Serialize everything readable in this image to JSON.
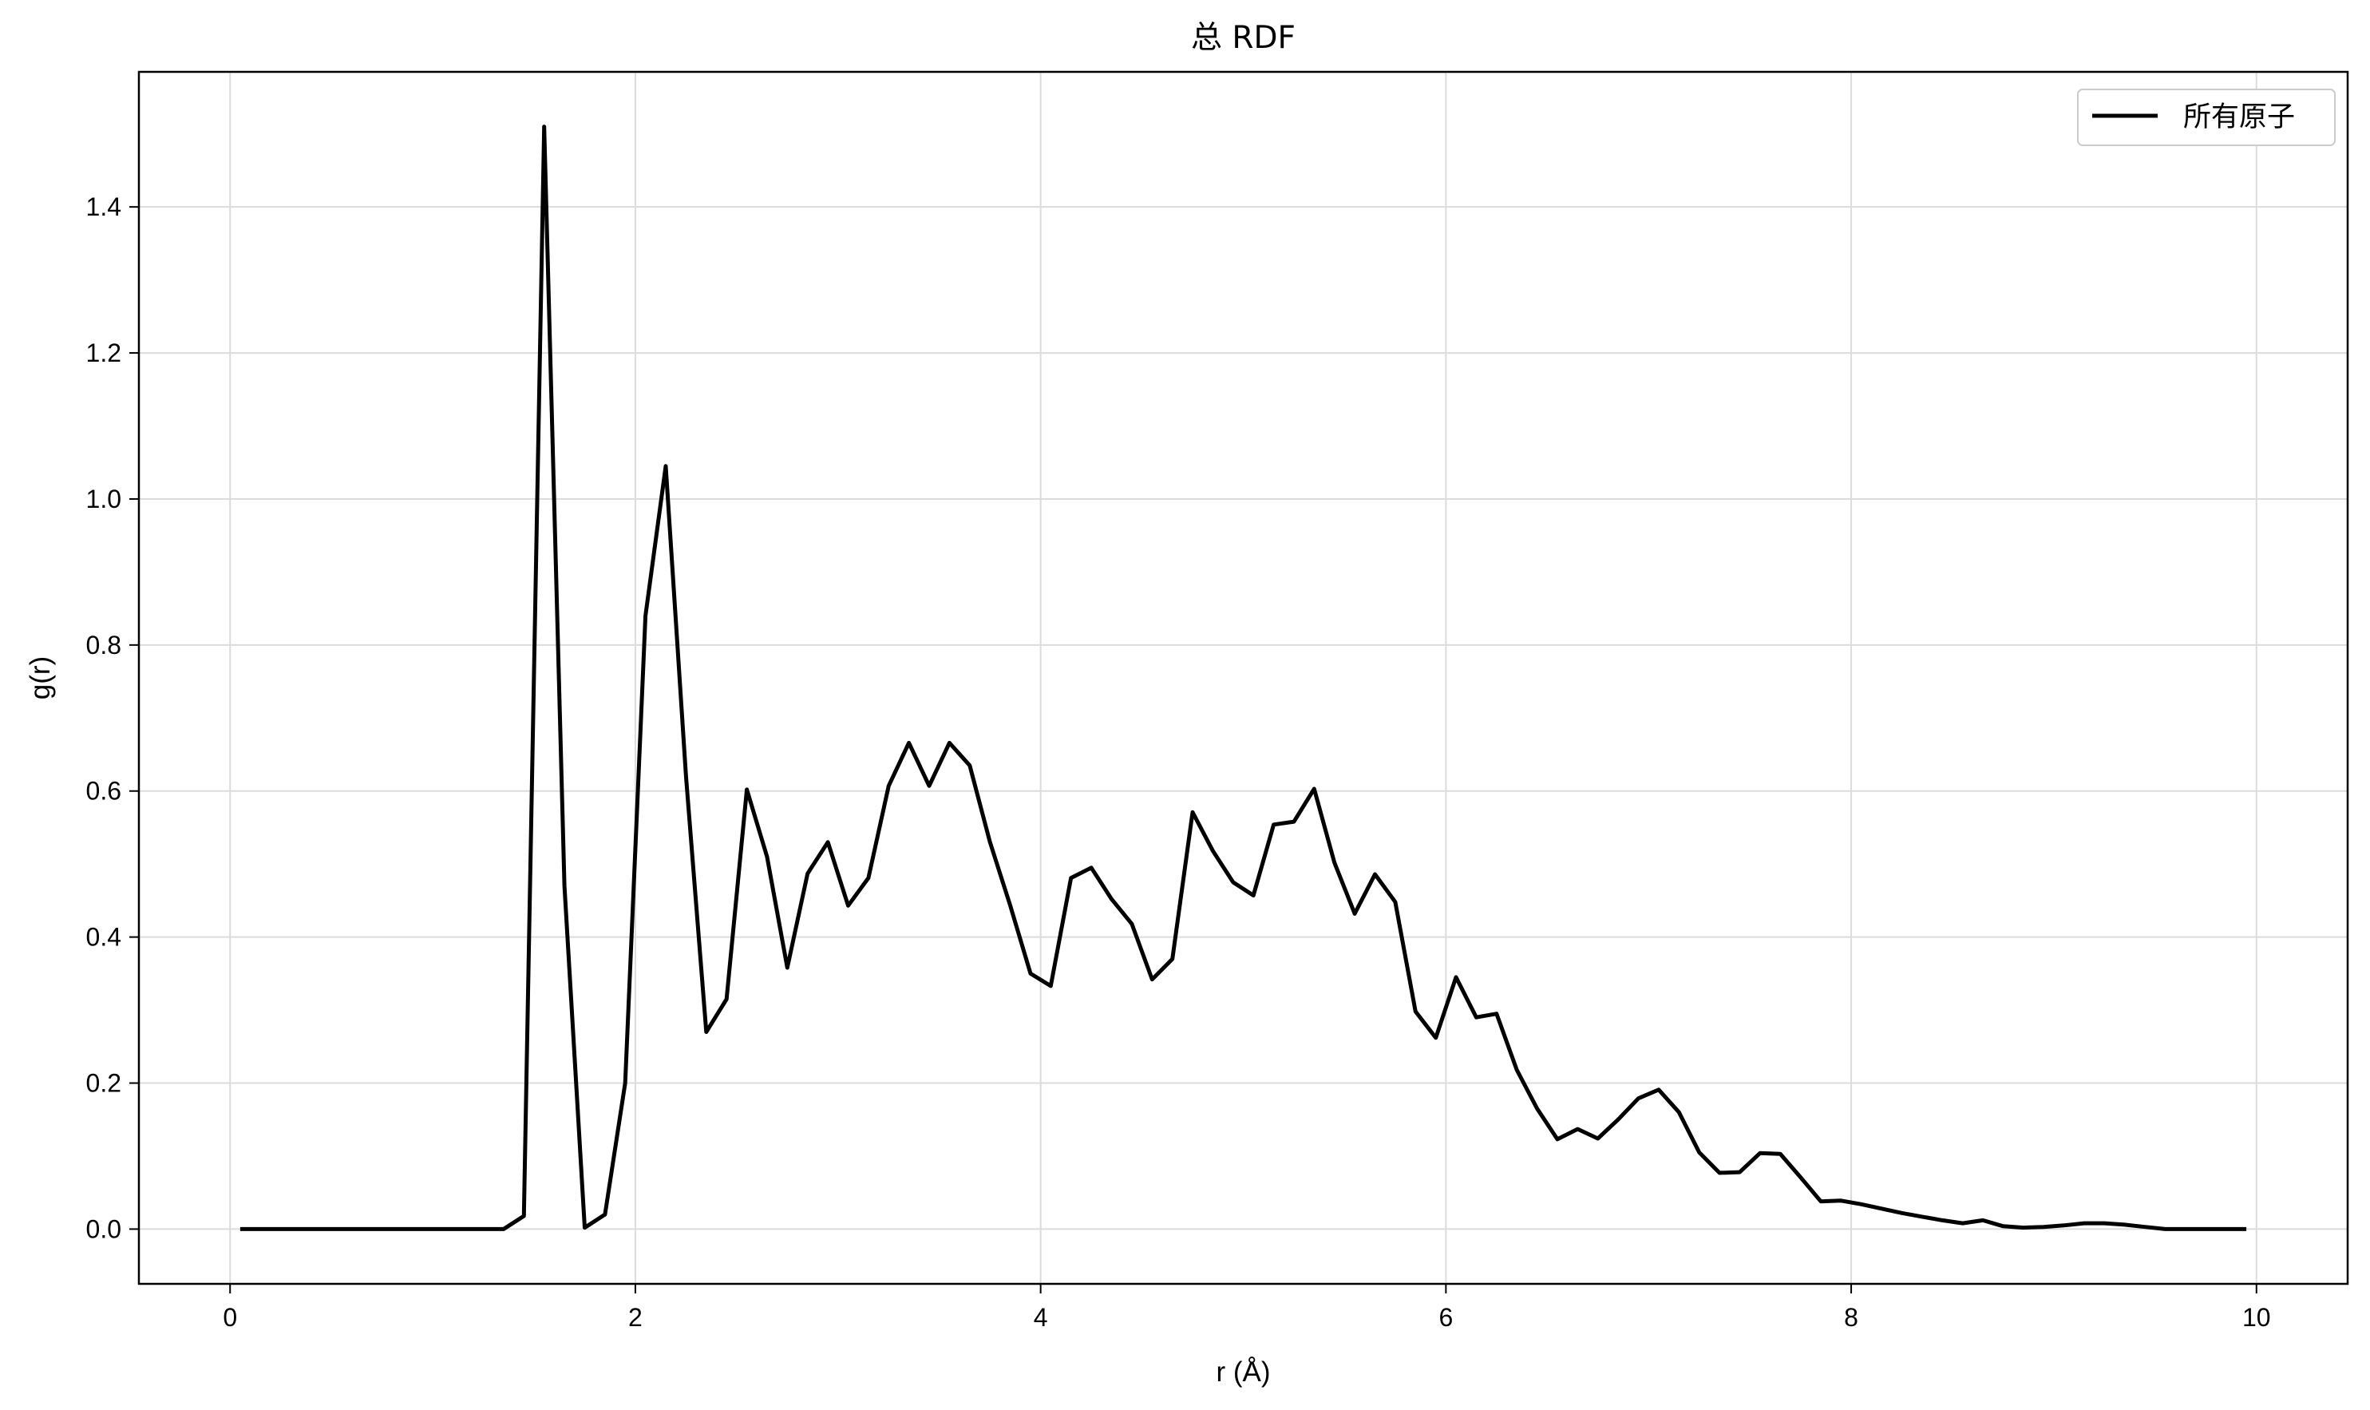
{
  "chart_data": {
    "type": "line",
    "title": "总 RDF",
    "xlabel": "r (Å)",
    "ylabel": "g(r)",
    "xlim": [
      -0.45,
      10.45
    ],
    "ylim": [
      -0.075,
      1.585
    ],
    "grid": true,
    "legend_position": "top-right",
    "x_ticks": [
      0,
      2,
      4,
      6,
      8,
      10
    ],
    "x_tick_labels": [
      "0",
      "2",
      "4",
      "6",
      "8",
      "10"
    ],
    "y_ticks": [
      0.0,
      0.2,
      0.4,
      0.6,
      0.8,
      1.0,
      1.2,
      1.4
    ],
    "y_tick_labels": [
      "0.0",
      "0.2",
      "0.4",
      "0.6",
      "0.8",
      "1.0",
      "1.2",
      "1.4"
    ],
    "series": [
      {
        "name": "所有原子",
        "color": "#000000",
        "x": [
          0.05,
          0.15,
          0.25,
          0.35,
          0.45,
          0.55,
          0.65,
          0.75,
          0.85,
          0.95,
          1.05,
          1.15,
          1.25,
          1.35,
          1.45,
          1.55,
          1.65,
          1.75,
          1.85,
          1.95,
          2.05,
          2.15,
          2.25,
          2.35,
          2.45,
          2.55,
          2.65,
          2.75,
          2.85,
          2.95,
          3.05,
          3.15,
          3.25,
          3.35,
          3.45,
          3.55,
          3.65,
          3.75,
          3.85,
          3.95,
          4.05,
          4.15,
          4.25,
          4.35,
          4.45,
          4.55,
          4.65,
          4.75,
          4.85,
          4.95,
          5.05,
          5.15,
          5.25,
          5.35,
          5.45,
          5.55,
          5.65,
          5.75,
          5.85,
          5.95,
          6.05,
          6.15,
          6.25,
          6.35,
          6.45,
          6.55,
          6.65,
          6.75,
          6.85,
          6.95,
          7.05,
          7.15,
          7.25,
          7.35,
          7.45,
          7.55,
          7.65,
          7.75,
          7.85,
          7.95,
          8.05,
          8.15,
          8.25,
          8.35,
          8.45,
          8.55,
          8.65,
          8.75,
          8.85,
          8.95,
          9.05,
          9.15,
          9.25,
          9.35,
          9.45,
          9.55,
          9.65,
          9.75,
          9.85,
          9.95
        ],
        "values": [
          0,
          0,
          0,
          0,
          0,
          0,
          0,
          0,
          0,
          0,
          0,
          0,
          0,
          0,
          0.018,
          1.51,
          0.47,
          0.002,
          0.02,
          0.2,
          0.84,
          1.045,
          0.62,
          0.27,
          0.315,
          0.602,
          0.51,
          0.358,
          0.487,
          0.53,
          0.443,
          0.481,
          0.607,
          0.666,
          0.607,
          0.666,
          0.635,
          0.53,
          0.443,
          0.35,
          0.333,
          0.481,
          0.495,
          0.452,
          0.418,
          0.342,
          0.37,
          0.571,
          0.518,
          0.475,
          0.457,
          0.554,
          0.558,
          0.603,
          0.502,
          0.432,
          0.486,
          0.448,
          0.298,
          0.262,
          0.345,
          0.29,
          0.295,
          0.218,
          0.165,
          0.123,
          0.137,
          0.124,
          0.15,
          0.179,
          0.191,
          0.16,
          0.105,
          0.077,
          0.078,
          0.104,
          0.103,
          0.071,
          0.038,
          0.039,
          0.034,
          0.028,
          0.022,
          0.017,
          0.012,
          0.008,
          0.012,
          0.004,
          0.002,
          0.003,
          0.005,
          0.008,
          0.008,
          0.006,
          0.003,
          0,
          0,
          0,
          0,
          0
        ]
      }
    ]
  }
}
